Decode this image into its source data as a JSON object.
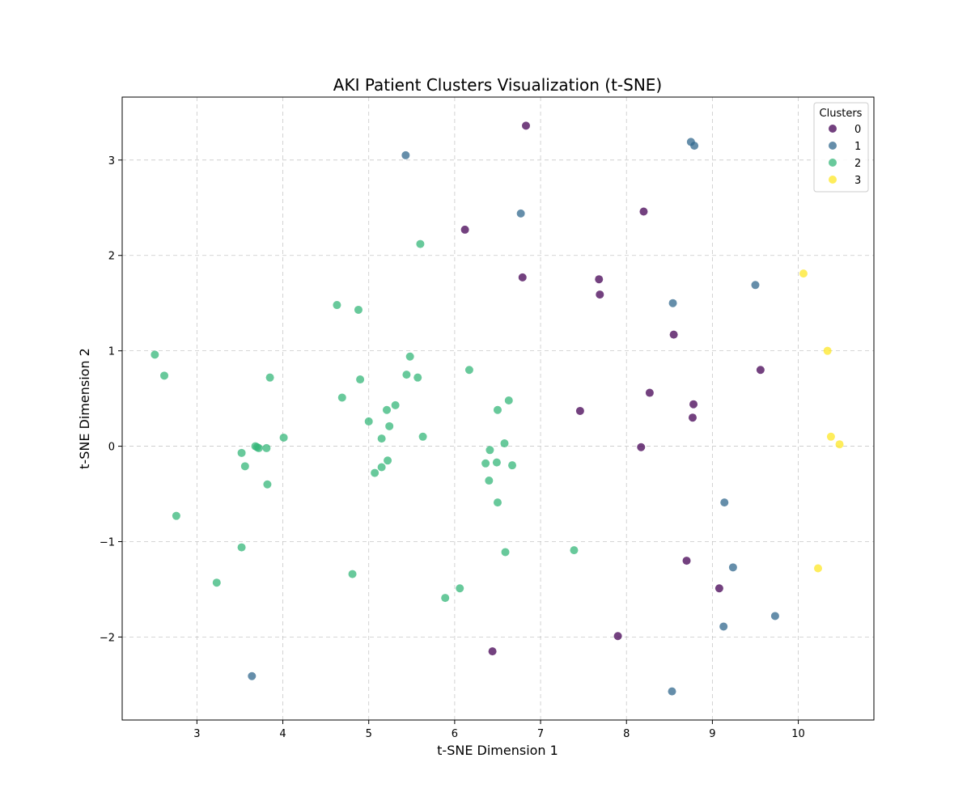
{
  "chart_data": {
    "type": "scatter",
    "title": "AKI Patient Clusters Visualization (t-SNE)",
    "xlabel": "t-SNE Dimension 1",
    "ylabel": "t-SNE Dimension 2",
    "xlim": [
      2.13,
      10.88
    ],
    "ylim": [
      -2.87,
      3.66
    ],
    "xticks": [
      3,
      4,
      5,
      6,
      7,
      8,
      9,
      10
    ],
    "yticks": [
      -2,
      -1,
      0,
      1,
      2,
      3
    ],
    "grid": true,
    "legend": {
      "title": "Clusters",
      "placement": "top-right"
    },
    "series": [
      {
        "name": "0",
        "color": "#440154",
        "points": [
          [
            6.83,
            3.36
          ],
          [
            8.2,
            2.46
          ],
          [
            6.12,
            2.27
          ],
          [
            6.79,
            1.77
          ],
          [
            7.68,
            1.75
          ],
          [
            7.69,
            1.59
          ],
          [
            8.55,
            1.17
          ],
          [
            9.56,
            0.8
          ],
          [
            8.27,
            0.56
          ],
          [
            8.78,
            0.44
          ],
          [
            7.46,
            0.37
          ],
          [
            8.77,
            0.3
          ],
          [
            8.17,
            -0.01
          ],
          [
            8.7,
            -1.2
          ],
          [
            9.08,
            -1.49
          ],
          [
            7.9,
            -1.99
          ],
          [
            6.44,
            -2.15
          ]
        ]
      },
      {
        "name": "1",
        "color": "#31688e",
        "points": [
          [
            5.43,
            3.05
          ],
          [
            8.75,
            3.19
          ],
          [
            8.79,
            3.15
          ],
          [
            6.77,
            2.44
          ],
          [
            9.5,
            1.69
          ],
          [
            8.54,
            1.5
          ],
          [
            9.14,
            -0.59
          ],
          [
            9.24,
            -1.27
          ],
          [
            9.73,
            -1.78
          ],
          [
            9.13,
            -1.89
          ],
          [
            3.64,
            -2.41
          ],
          [
            8.53,
            -2.57
          ]
        ]
      },
      {
        "name": "2",
        "color": "#35b779",
        "points": [
          [
            5.6,
            2.12
          ],
          [
            4.63,
            1.48
          ],
          [
            4.88,
            1.43
          ],
          [
            2.51,
            0.96
          ],
          [
            5.48,
            0.94
          ],
          [
            2.62,
            0.74
          ],
          [
            6.17,
            0.8
          ],
          [
            5.44,
            0.75
          ],
          [
            5.57,
            0.72
          ],
          [
            3.85,
            0.72
          ],
          [
            4.9,
            0.7
          ],
          [
            4.69,
            0.51
          ],
          [
            6.63,
            0.48
          ],
          [
            5.31,
            0.43
          ],
          [
            5.21,
            0.38
          ],
          [
            6.5,
            0.38
          ],
          [
            5.0,
            0.26
          ],
          [
            5.24,
            0.21
          ],
          [
            5.63,
            0.1
          ],
          [
            4.01,
            0.09
          ],
          [
            5.15,
            0.08
          ],
          [
            3.68,
            0.0
          ],
          [
            3.7,
            -0.01
          ],
          [
            3.72,
            -0.02
          ],
          [
            3.81,
            -0.02
          ],
          [
            6.58,
            0.03
          ],
          [
            6.41,
            -0.04
          ],
          [
            3.52,
            -0.07
          ],
          [
            6.36,
            -0.18
          ],
          [
            6.49,
            -0.17
          ],
          [
            6.67,
            -0.2
          ],
          [
            3.56,
            -0.21
          ],
          [
            5.15,
            -0.22
          ],
          [
            5.22,
            -0.15
          ],
          [
            5.07,
            -0.28
          ],
          [
            6.4,
            -0.36
          ],
          [
            3.82,
            -0.4
          ],
          [
            6.5,
            -0.59
          ],
          [
            2.76,
            -0.73
          ],
          [
            3.52,
            -1.06
          ],
          [
            6.59,
            -1.11
          ],
          [
            7.39,
            -1.09
          ],
          [
            4.81,
            -1.34
          ],
          [
            3.23,
            -1.43
          ],
          [
            6.06,
            -1.49
          ],
          [
            5.89,
            -1.59
          ]
        ]
      },
      {
        "name": "3",
        "color": "#fde725",
        "points": [
          [
            10.06,
            1.81
          ],
          [
            10.34,
            1.0
          ],
          [
            10.38,
            0.1
          ],
          [
            10.48,
            0.02
          ],
          [
            10.23,
            -1.28
          ]
        ]
      }
    ]
  }
}
